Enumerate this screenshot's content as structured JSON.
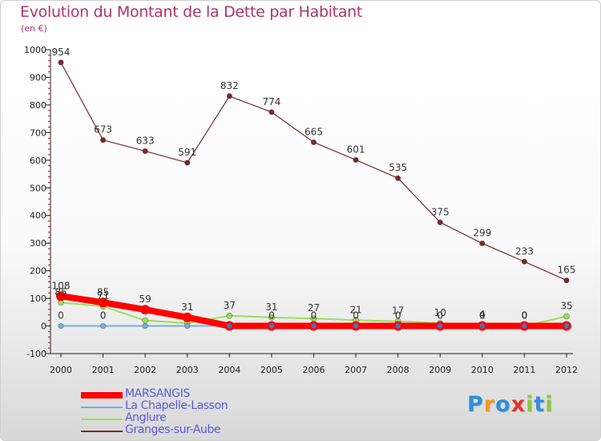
{
  "header": {
    "title": "Evolution du Montant de la Dette par Habitant",
    "subtitle": "(en €)"
  },
  "chart_data": {
    "type": "line",
    "title": "Evolution du Montant de la Dette par Habitant",
    "ylabel": "(en €)",
    "xlabel": "",
    "x": [
      "2000",
      "2001",
      "2002",
      "2003",
      "2004",
      "2005",
      "2006",
      "2007",
      "2008",
      "2009",
      "2010",
      "2011",
      "2012"
    ],
    "ylim": [
      -100,
      1000
    ],
    "yticks": [
      -100,
      0,
      100,
      200,
      300,
      400,
      500,
      600,
      700,
      800,
      900,
      1000
    ],
    "grid": false,
    "legend_position": "bottom-left",
    "series": [
      {
        "name": "MARSANGIS",
        "color": "#ff0000",
        "values": [
          108,
          85,
          59,
          31,
          0,
          0,
          0,
          0,
          0,
          0,
          0,
          0,
          0
        ],
        "labels": [
          "108",
          "85",
          "59",
          "31",
          "",
          "0",
          "0",
          "0",
          "0",
          "0",
          "0",
          "0",
          ""
        ]
      },
      {
        "name": "La Chapelle-Lasson",
        "color": "#7aaedc",
        "values": [
          0,
          0,
          0,
          0,
          0,
          0,
          0,
          0,
          0,
          0,
          0,
          0,
          0
        ],
        "labels": [
          "0",
          "0",
          "",
          "",
          "",
          "",
          "",
          "",
          "",
          "",
          "0",
          "0",
          ""
        ]
      },
      {
        "name": "Anglure",
        "color": "#99e05c",
        "values": [
          85,
          71,
          20,
          10,
          37,
          31,
          27,
          21,
          17,
          10,
          4,
          0,
          35
        ],
        "labels": [
          "85",
          "71",
          "",
          "",
          "37",
          "31",
          "27",
          "21",
          "17",
          "10",
          "4",
          "0",
          "35"
        ]
      },
      {
        "name": "Granges-sur-Aube",
        "color": "#7a2a2e",
        "values": [
          954,
          673,
          633,
          591,
          832,
          774,
          665,
          601,
          535,
          375,
          299,
          233,
          165
        ],
        "labels": [
          "954",
          "673",
          "633",
          "591",
          "832",
          "774",
          "665",
          "601",
          "535",
          "375",
          "299",
          "233",
          "165"
        ]
      }
    ]
  },
  "legend": [
    {
      "label": "MARSANGIS",
      "color": "#ff0000",
      "thickness": 8
    },
    {
      "label": "La Chapelle-Lasson",
      "color": "#7aaedc",
      "thickness": 2
    },
    {
      "label": "Anglure",
      "color": "#99e05c",
      "thickness": 2
    },
    {
      "label": "Granges-sur-Aube",
      "color": "#7a2a2e",
      "thickness": 2
    }
  ],
  "brand": {
    "text": "Proxiti",
    "letters": [
      {
        "ch": "P",
        "color": "#2f8fd8"
      },
      {
        "ch": "r",
        "color": "#f29a1d"
      },
      {
        "ch": "o",
        "color": "#2f8fd8"
      },
      {
        "ch": "x",
        "color": "#e2362c"
      },
      {
        "ch": "i",
        "color": "#8bc83f"
      },
      {
        "ch": "t",
        "color": "#2f8fd8"
      },
      {
        "ch": "i",
        "color": "#8bc83f"
      }
    ]
  }
}
